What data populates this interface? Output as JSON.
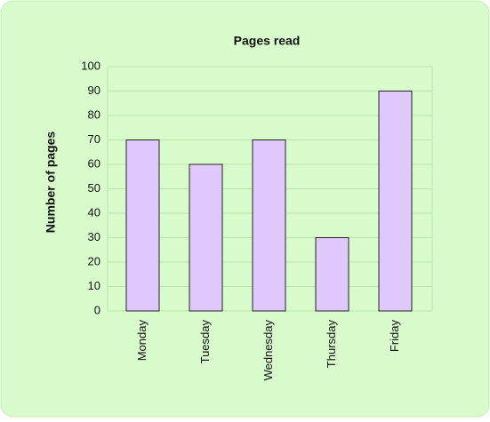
{
  "chart_data": {
    "type": "bar",
    "title": "Pages read",
    "y_label": "Number of pages",
    "categories": [
      "Monday",
      "Tuesday",
      "Wednesday",
      "Thursday",
      "Friday"
    ],
    "values": [
      70,
      60,
      70,
      30,
      90
    ],
    "color": "#e0c9fc",
    "ylim": [
      0,
      100
    ],
    "yticks": [
      0,
      10,
      20,
      30,
      40,
      50,
      60,
      70,
      80,
      90,
      100
    ],
    "grid": true
  }
}
